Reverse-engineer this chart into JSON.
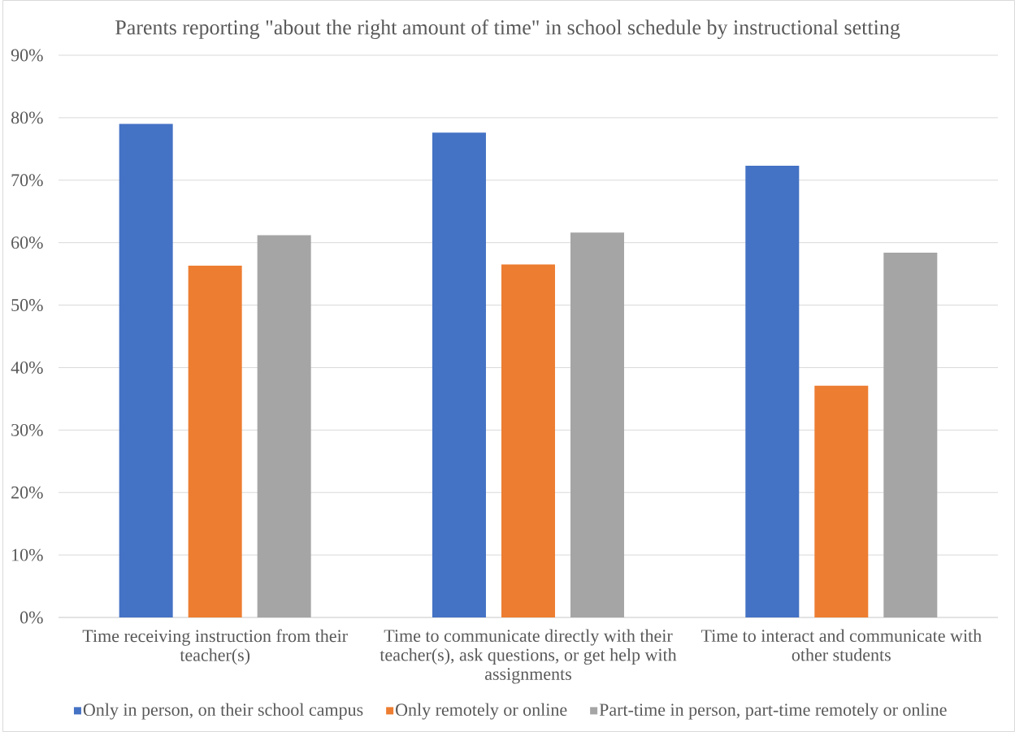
{
  "chart_data": {
    "type": "bar",
    "title": "Parents reporting \"about the right amount of time\" in school schedule by instructional setting",
    "categories": [
      "Time receiving instruction from their teacher(s)",
      "Time to communicate directly with their teacher(s), ask questions, or get help with assignments",
      "Time to interact and communicate with other students"
    ],
    "series": [
      {
        "name": "Only in person, on their school campus",
        "color": "#4472c4",
        "values": [
          79.0,
          77.6,
          72.3
        ]
      },
      {
        "name": "Only remotely or online",
        "color": "#ed7d31",
        "values": [
          56.3,
          56.5,
          37.1
        ]
      },
      {
        "name": "Part-time in person, part-time remotely or online",
        "color": "#a5a5a5",
        "values": [
          61.2,
          61.6,
          58.4
        ]
      }
    ],
    "ylim": [
      0,
      90
    ],
    "yticks": [
      {
        "value": 0,
        "label": "0%"
      },
      {
        "value": 10,
        "label": "10%"
      },
      {
        "value": 20,
        "label": "20%"
      },
      {
        "value": 30,
        "label": "30%"
      },
      {
        "value": 40,
        "label": "40%"
      },
      {
        "value": 50,
        "label": "50%"
      },
      {
        "value": 60,
        "label": "60%"
      },
      {
        "value": 70,
        "label": "70%"
      },
      {
        "value": 80,
        "label": "80%"
      },
      {
        "value": 90,
        "label": "90%"
      }
    ],
    "grid": "y",
    "legend": "bottom"
  }
}
